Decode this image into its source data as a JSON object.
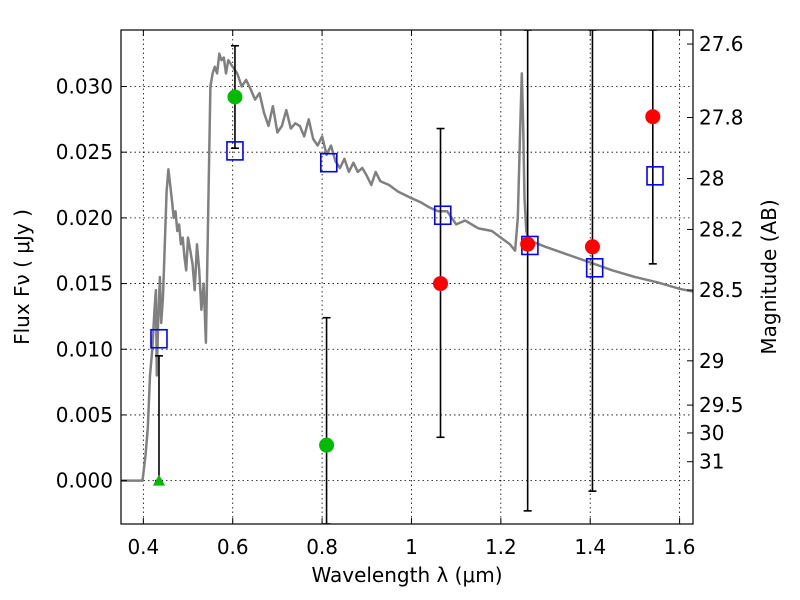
{
  "chart_data": {
    "type": "scatter",
    "title": "",
    "xlabel": "Wavelength  λ (μm)",
    "ylabel": "Flux  Fν  ( μJy )",
    "ylabel_right": "Magnitude (AB)",
    "xlim": [
      0.35,
      1.63
    ],
    "ylim": [
      -0.0033,
      0.0343
    ],
    "grid": true,
    "x_ticks": [
      0.4,
      0.6,
      0.8,
      1.0,
      1.2,
      1.4,
      1.6
    ],
    "x_tick_labels": [
      "0.4",
      "0.6",
      "0.8",
      "1",
      "1.2",
      "1.4",
      "1.6"
    ],
    "y_ticks": [
      0.0,
      0.005,
      0.01,
      0.015,
      0.02,
      0.025,
      0.03
    ],
    "y_tick_labels": [
      "0.000",
      "0.005",
      "0.010",
      "0.015",
      "0.020",
      "0.025",
      "0.030"
    ],
    "right_ticks": [
      {
        "label": "27.6",
        "flux": 0.03323
      },
      {
        "label": "27.8",
        "flux": 0.02764
      },
      {
        "label": "28",
        "flux": 0.02299
      },
      {
        "label": "28.2",
        "flux": 0.01912
      },
      {
        "label": "28.5",
        "flux": 0.01451
      },
      {
        "label": "29",
        "flux": 0.00912
      },
      {
        "label": "29.5",
        "flux": 0.00575
      },
      {
        "label": "30",
        "flux": 0.00363
      },
      {
        "label": "31",
        "flux": 0.00144
      }
    ],
    "series": [
      {
        "kind": "line",
        "color": "#808080",
        "x": [
          0.35,
          0.398,
          0.4,
          0.405,
          0.41,
          0.415,
          0.42,
          0.425,
          0.428,
          0.43,
          0.433,
          0.437,
          0.44,
          0.444,
          0.448,
          0.452,
          0.456,
          0.46,
          0.465,
          0.468,
          0.472,
          0.476,
          0.48,
          0.484,
          0.488,
          0.492,
          0.496,
          0.5,
          0.505,
          0.51,
          0.515,
          0.52,
          0.525,
          0.53,
          0.535,
          0.54,
          0.545,
          0.55,
          0.555,
          0.56,
          0.565,
          0.57,
          0.575,
          0.58,
          0.585,
          0.59,
          0.6,
          0.61,
          0.62,
          0.63,
          0.64,
          0.65,
          0.66,
          0.67,
          0.68,
          0.69,
          0.7,
          0.71,
          0.72,
          0.73,
          0.74,
          0.75,
          0.76,
          0.77,
          0.78,
          0.79,
          0.8,
          0.81,
          0.82,
          0.83,
          0.84,
          0.85,
          0.86,
          0.87,
          0.88,
          0.89,
          0.9,
          0.91,
          0.92,
          0.93,
          0.95,
          0.97,
          1.0,
          1.02,
          1.04,
          1.06,
          1.08,
          1.1,
          1.12,
          1.15,
          1.18,
          1.2,
          1.22,
          1.232,
          1.238,
          1.243,
          1.247,
          1.25,
          1.253,
          1.257,
          1.262,
          1.27,
          1.3,
          1.35,
          1.4,
          1.45,
          1.5,
          1.55,
          1.6,
          1.63
        ],
        "y": [
          0.0,
          0.0,
          0.0005,
          0.002,
          0.004,
          0.008,
          0.01,
          0.013,
          0.0145,
          0.008,
          0.012,
          0.0155,
          0.012,
          0.014,
          0.018,
          0.022,
          0.0237,
          0.0225,
          0.021,
          0.02,
          0.0205,
          0.019,
          0.0195,
          0.018,
          0.0185,
          0.017,
          0.016,
          0.0185,
          0.0175,
          0.0165,
          0.0145,
          0.018,
          0.016,
          0.013,
          0.015,
          0.0105,
          0.02,
          0.03,
          0.031,
          0.0315,
          0.031,
          0.0325,
          0.032,
          0.0322,
          0.031,
          0.032,
          0.0315,
          0.031,
          0.03,
          0.0305,
          0.0298,
          0.029,
          0.0295,
          0.028,
          0.027,
          0.0285,
          0.0265,
          0.027,
          0.0282,
          0.0268,
          0.0272,
          0.027,
          0.0262,
          0.0275,
          0.026,
          0.0255,
          0.0262,
          0.0248,
          0.0255,
          0.0243,
          0.0238,
          0.0245,
          0.0235,
          0.0242,
          0.0235,
          0.0238,
          0.0232,
          0.0225,
          0.0235,
          0.0228,
          0.0225,
          0.022,
          0.0215,
          0.0212,
          0.0208,
          0.0205,
          0.0205,
          0.0195,
          0.0198,
          0.0192,
          0.019,
          0.0185,
          0.018,
          0.0175,
          0.02,
          0.0265,
          0.031,
          0.027,
          0.0215,
          0.019,
          0.0183,
          0.0182,
          0.0178,
          0.0172,
          0.0166,
          0.016,
          0.0155,
          0.0151,
          0.0146,
          0.0144
        ]
      },
      {
        "kind": "marker",
        "marker": "square-open",
        "color": "#0000ff",
        "x": [
          0.435,
          0.605,
          0.815,
          1.07,
          1.265,
          1.41,
          1.545
        ],
        "y": [
          0.0108,
          0.0251,
          0.0242,
          0.0202,
          0.0179,
          0.0162,
          0.0232
        ]
      },
      {
        "kind": "marker",
        "marker": "circle",
        "color": "#00bb00",
        "x": [
          0.605,
          0.81
        ],
        "y": [
          0.0292,
          0.0027
        ]
      },
      {
        "kind": "marker",
        "marker": "circle",
        "color": "#ff0000",
        "x": [
          1.065,
          1.26,
          1.405,
          1.54
        ],
        "y": [
          0.015,
          0.018,
          0.0178,
          0.0277
        ]
      },
      {
        "kind": "marker",
        "marker": "triangle",
        "color": "#00bb00",
        "x": [
          0.435
        ],
        "y": [
          0.0
        ]
      },
      {
        "kind": "errorbar",
        "color": "#000000",
        "x": [
          0.435,
          0.605,
          0.81,
          1.065,
          1.26,
          1.405,
          1.54
        ],
        "y_low": [
          0.0,
          0.0253,
          -0.0033,
          0.0033,
          -0.0023,
          -0.0008,
          0.0165
        ],
        "y_high": [
          0.0095,
          0.0331,
          0.0124,
          0.0268,
          0.0343,
          0.0343,
          0.0343
        ]
      }
    ]
  }
}
